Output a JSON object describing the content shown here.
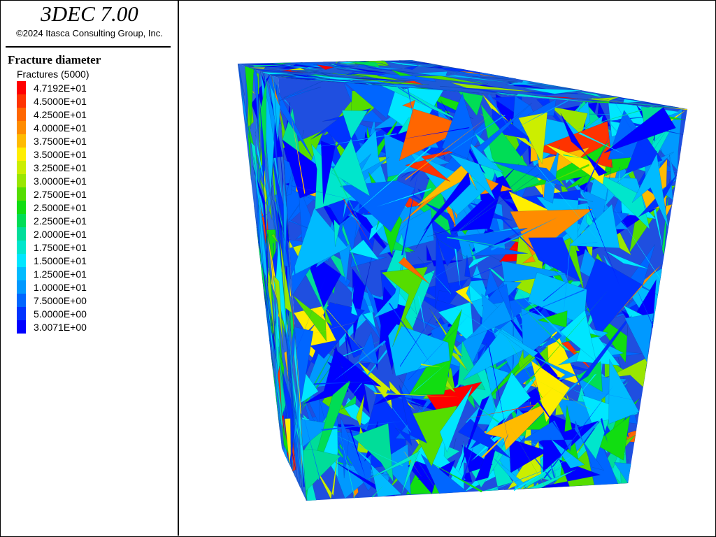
{
  "app": {
    "title": "3DEC 7.00",
    "copyright": "©2024 Itasca Consulting Group, Inc."
  },
  "legend": {
    "title": "Fracture diameter",
    "subtitle": "Fractures (5000)",
    "items": [
      {
        "label": "4.7192E+01",
        "color": "#ff0000"
      },
      {
        "label": "4.5000E+01",
        "color": "#ff3300"
      },
      {
        "label": "4.2500E+01",
        "color": "#ff6600"
      },
      {
        "label": "4.0000E+01",
        "color": "#ff8c00"
      },
      {
        "label": "3.7500E+01",
        "color": "#ffbb00"
      },
      {
        "label": "3.5000E+01",
        "color": "#ffee00"
      },
      {
        "label": "3.2500E+01",
        "color": "#ccee00"
      },
      {
        "label": "3.0000E+01",
        "color": "#99e600"
      },
      {
        "label": "2.7500E+01",
        "color": "#55dd00"
      },
      {
        "label": "2.5000E+01",
        "color": "#11dd11"
      },
      {
        "label": "2.2500E+01",
        "color": "#00dd55"
      },
      {
        "label": "2.0000E+01",
        "color": "#00dd99"
      },
      {
        "label": "1.7500E+01",
        "color": "#00e6cc"
      },
      {
        "label": "1.5000E+01",
        "color": "#00e6ff"
      },
      {
        "label": "1.2500E+01",
        "color": "#00bbff"
      },
      {
        "label": "1.0000E+01",
        "color": "#0099ff"
      },
      {
        "label": "7.5000E+00",
        "color": "#0066ff"
      },
      {
        "label": "5.0000E+00",
        "color": "#0033ff"
      },
      {
        "label": "3.0071E+00",
        "color": "#0000ff"
      }
    ]
  }
}
